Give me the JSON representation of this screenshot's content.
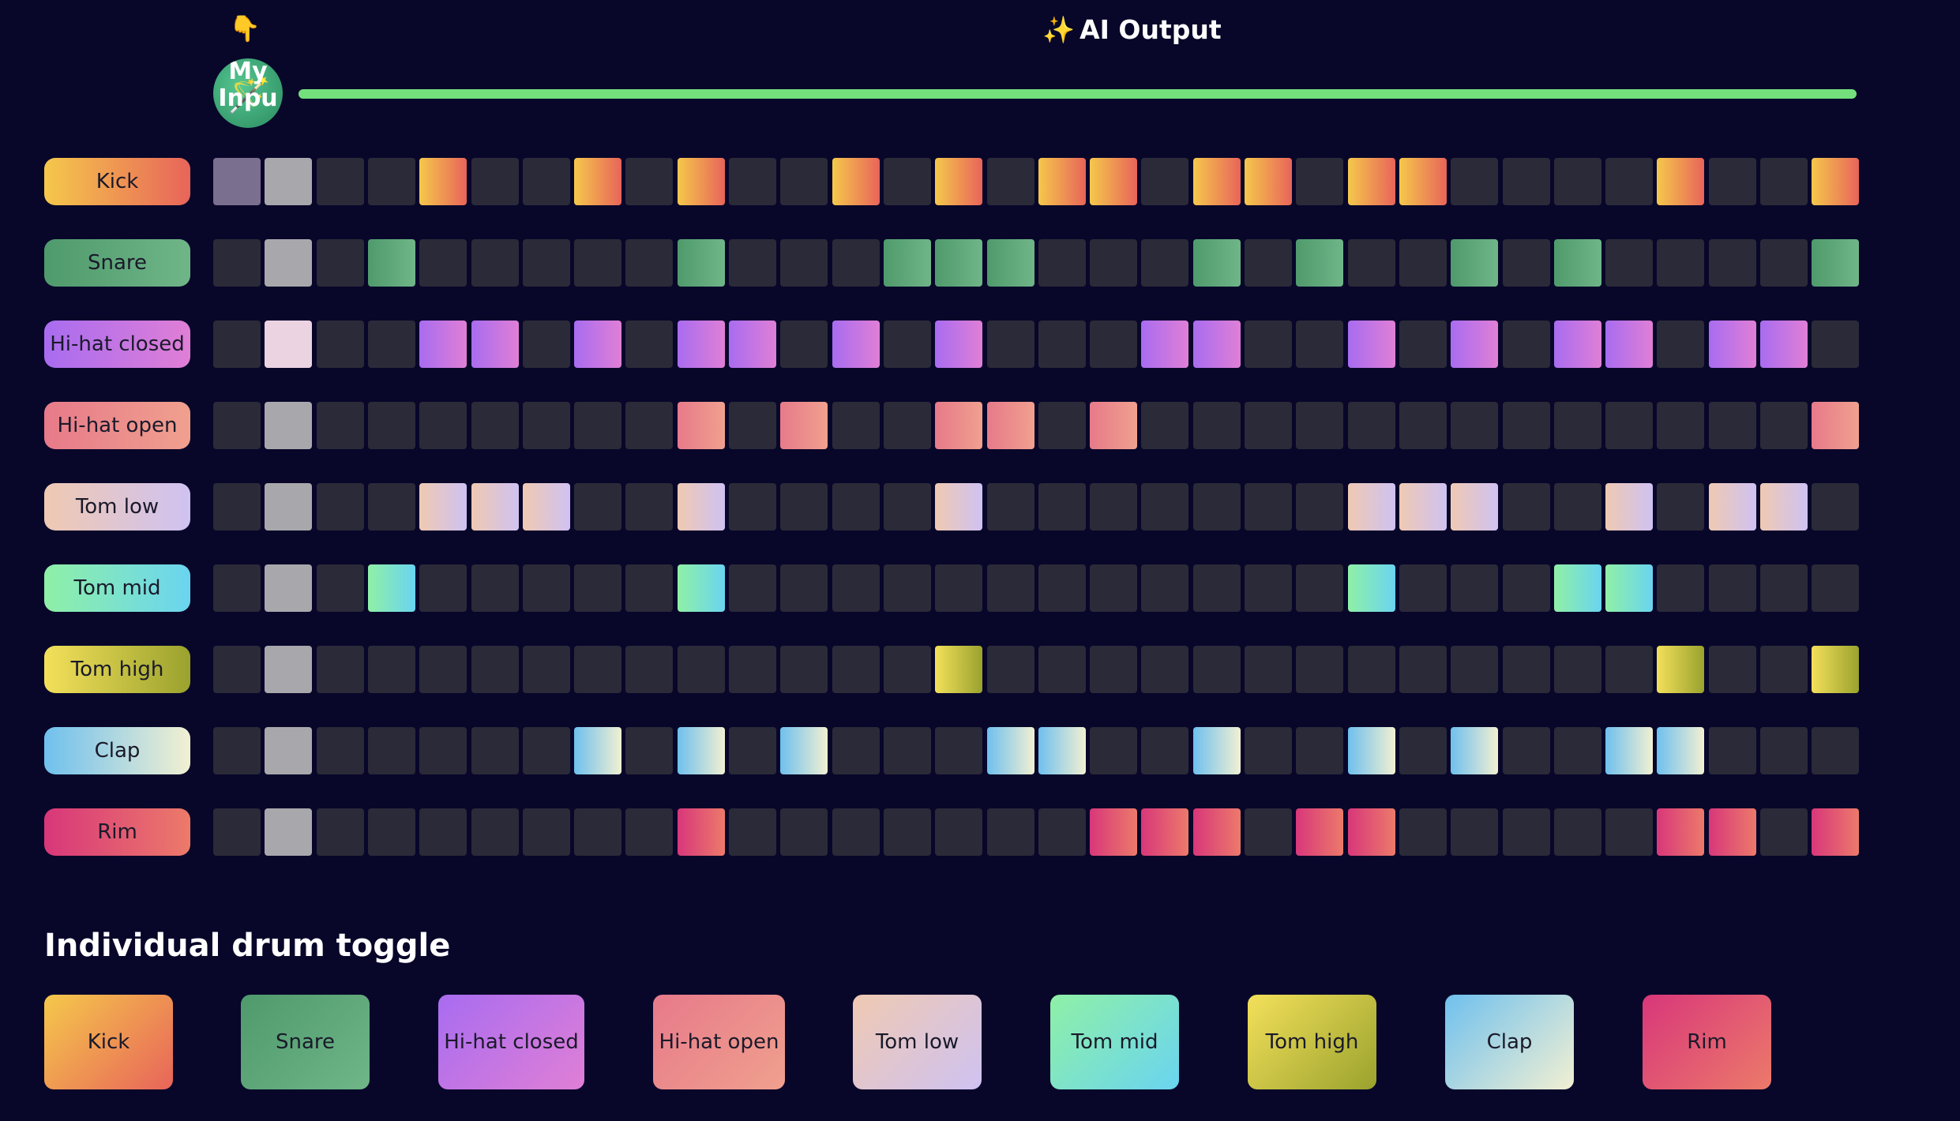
{
  "header": {
    "pointer_icon": "pointing-down-hand",
    "ai_output_icon": "sparkles",
    "ai_output_label": "AI Output",
    "my_input_label": "My Inpu",
    "my_input_icon": "magic-wand",
    "progress_fraction": 1.0,
    "progress_color": "#74e07c"
  },
  "drums": [
    {
      "key": "kick",
      "label": "Kick",
      "gradient": [
        "#f5c84b",
        "#e8645a"
      ],
      "steps": [
        0,
        0,
        0,
        0,
        1,
        0,
        0,
        1,
        0,
        1,
        0,
        0,
        1,
        0,
        1,
        0,
        1,
        1,
        0,
        1,
        1,
        0,
        1,
        1,
        0,
        0,
        0,
        0,
        1,
        0,
        0,
        1
      ]
    },
    {
      "key": "snare",
      "label": "Snare",
      "gradient": [
        "#4f9a6c",
        "#6fb588"
      ],
      "steps": [
        0,
        0,
        0,
        1,
        0,
        0,
        0,
        0,
        0,
        1,
        0,
        0,
        0,
        1,
        1,
        1,
        0,
        0,
        0,
        1,
        0,
        1,
        0,
        0,
        1,
        0,
        1,
        0,
        0,
        0,
        0,
        1
      ]
    },
    {
      "key": "hihat-closed",
      "label": "Hi-hat closed",
      "gradient": [
        "#a86cf0",
        "#e07fd6"
      ],
      "steps": [
        0,
        1,
        0,
        0,
        1,
        1,
        0,
        1,
        0,
        1,
        1,
        0,
        1,
        0,
        1,
        0,
        0,
        0,
        1,
        1,
        0,
        0,
        1,
        0,
        1,
        0,
        1,
        1,
        0,
        1,
        1,
        0
      ]
    },
    {
      "key": "hihat-open",
      "label": "Hi-hat open",
      "gradient": [
        "#e77a8a",
        "#f0a08e"
      ],
      "steps": [
        0,
        0,
        0,
        0,
        0,
        0,
        0,
        0,
        0,
        1,
        0,
        1,
        0,
        0,
        1,
        1,
        0,
        1,
        0,
        0,
        0,
        0,
        0,
        0,
        0,
        0,
        0,
        0,
        0,
        0,
        0,
        1
      ]
    },
    {
      "key": "tom-low",
      "label": "Tom low",
      "gradient": [
        "#efc9b2",
        "#cfc2f2"
      ],
      "steps": [
        0,
        0,
        0,
        0,
        1,
        1,
        1,
        0,
        0,
        1,
        0,
        0,
        0,
        0,
        1,
        0,
        0,
        0,
        0,
        0,
        0,
        0,
        1,
        1,
        1,
        0,
        0,
        1,
        0,
        1,
        1,
        0
      ]
    },
    {
      "key": "tom-mid",
      "label": "Tom mid",
      "gradient": [
        "#8ff0a6",
        "#6ad4f0"
      ],
      "steps": [
        0,
        0,
        0,
        1,
        0,
        0,
        0,
        0,
        0,
        1,
        0,
        0,
        0,
        0,
        0,
        0,
        0,
        0,
        0,
        0,
        0,
        0,
        1,
        0,
        0,
        0,
        1,
        1,
        0,
        0,
        0,
        0
      ]
    },
    {
      "key": "tom-high",
      "label": "Tom high",
      "gradient": [
        "#f3e05a",
        "#9aa22e"
      ],
      "steps": [
        0,
        0,
        0,
        0,
        0,
        0,
        0,
        0,
        0,
        0,
        0,
        0,
        0,
        0,
        1,
        0,
        0,
        0,
        0,
        0,
        0,
        0,
        0,
        0,
        0,
        0,
        0,
        0,
        1,
        0,
        0,
        1
      ]
    },
    {
      "key": "clap",
      "label": "Clap",
      "gradient": [
        "#6fc0ee",
        "#f2f0d2"
      ],
      "steps": [
        0,
        0,
        0,
        0,
        0,
        0,
        0,
        1,
        0,
        1,
        0,
        1,
        0,
        0,
        0,
        1,
        1,
        0,
        0,
        1,
        0,
        0,
        1,
        0,
        1,
        0,
        0,
        1,
        1,
        0,
        0,
        0
      ]
    },
    {
      "key": "rim",
      "label": "Rim",
      "gradient": [
        "#d8377a",
        "#ec7a6a"
      ],
      "steps": [
        0,
        0,
        0,
        0,
        0,
        0,
        0,
        0,
        0,
        1,
        0,
        0,
        0,
        0,
        0,
        0,
        0,
        1,
        1,
        1,
        0,
        1,
        1,
        0,
        0,
        0,
        0,
        0,
        1,
        1,
        0,
        1
      ]
    }
  ],
  "playhead_step": 1,
  "section": {
    "title": "Individual drum toggle"
  }
}
